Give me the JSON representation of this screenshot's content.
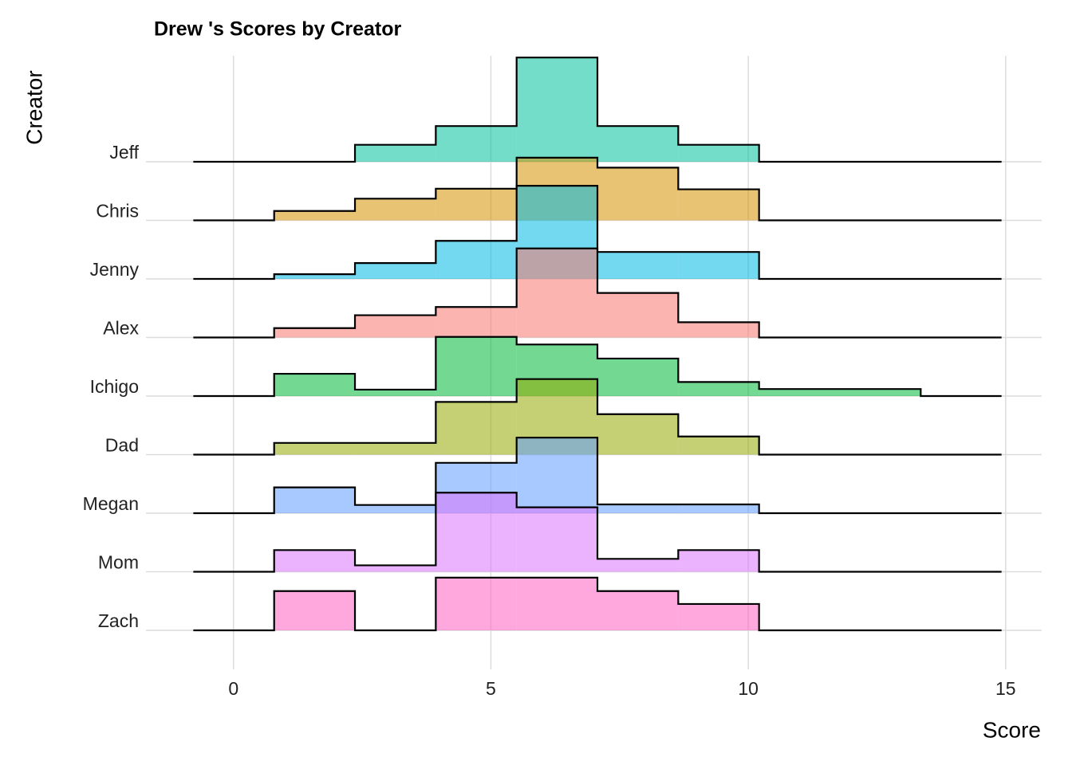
{
  "chart_data": {
    "type": "ridgeline-histogram",
    "title": "Drew 's Scores by Creator",
    "x_label": "Score",
    "y_label": "Creator",
    "bins": [
      -0.78,
      0.79,
      2.36,
      3.93,
      5.5,
      7.07,
      8.64,
      10.21,
      11.78,
      13.35,
      14.92
    ],
    "xlim": [
      -1.7,
      15.7
    ],
    "xticks": [
      0,
      5,
      10,
      15
    ],
    "grid": true,
    "series": [
      {
        "name": "Jeff",
        "color": "#00C19F",
        "values": [
          0,
          0,
          0.29,
          0.61,
          1.78,
          0.61,
          0.29,
          0,
          0,
          0
        ]
      },
      {
        "name": "Chris",
        "color": "#D39200",
        "values": [
          0,
          0.16,
          0.37,
          0.54,
          1.07,
          0.9,
          0.53,
          0,
          0,
          0
        ]
      },
      {
        "name": "Jenny",
        "color": "#00B9E3",
        "values": [
          0,
          0.08,
          0.27,
          0.65,
          1.59,
          0.46,
          0.46,
          0,
          0,
          0
        ]
      },
      {
        "name": "Alex",
        "color": "#F8766D",
        "values": [
          0,
          0.16,
          0.38,
          0.52,
          1.52,
          0.76,
          0.26,
          0,
          0,
          0
        ]
      },
      {
        "name": "Ichigo",
        "color": "#00BA38",
        "values": [
          0,
          0.38,
          0.11,
          1.01,
          0.88,
          0.64,
          0.24,
          0.12,
          0.12,
          0
        ]
      },
      {
        "name": "Dad",
        "color": "#93AA00",
        "values": [
          0,
          0.2,
          0.2,
          0.9,
          1.29,
          0.69,
          0.31,
          0,
          0,
          0
        ]
      },
      {
        "name": "Megan",
        "color": "#619CFF",
        "values": [
          0,
          0.44,
          0.14,
          0.86,
          1.29,
          0.15,
          0.15,
          0,
          0,
          0
        ]
      },
      {
        "name": "Mom",
        "color": "#DB72FB",
        "values": [
          0,
          0.37,
          0.11,
          1.35,
          1.1,
          0.22,
          0.37,
          0,
          0,
          0
        ]
      },
      {
        "name": "Zach",
        "color": "#FF61C3",
        "values": [
          0,
          0.67,
          0,
          0.9,
          0.9,
          0.67,
          0.45,
          0,
          0,
          0
        ]
      }
    ]
  }
}
